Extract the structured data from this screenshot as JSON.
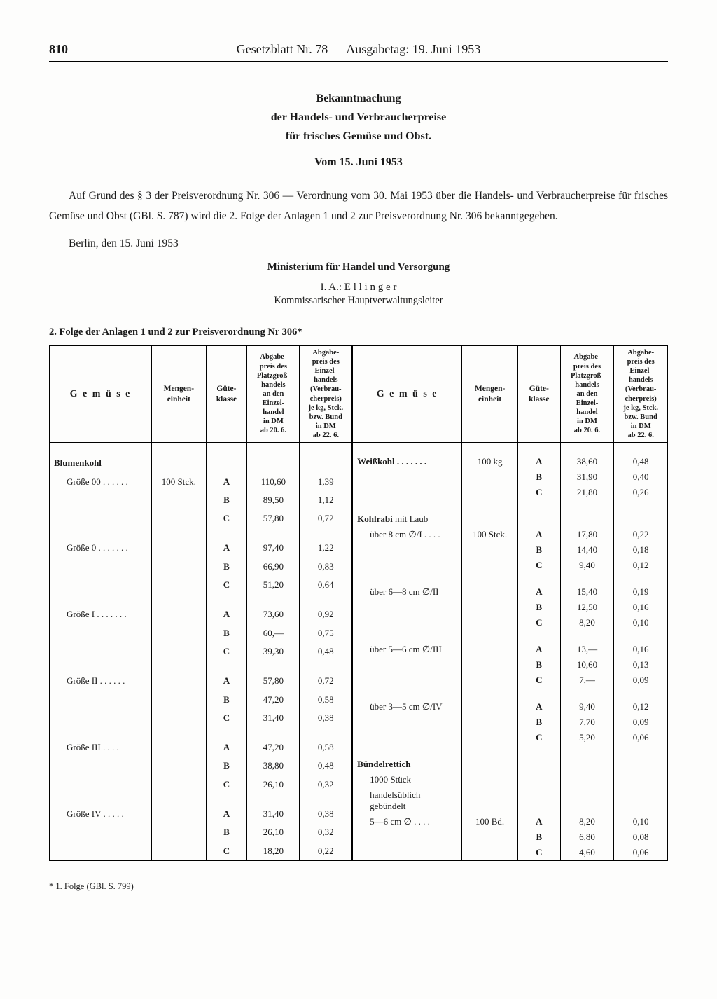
{
  "header": {
    "pagenum": "810",
    "running": "Gesetzblatt Nr. 78 — Ausgabetag: 19. Juni 1953"
  },
  "title": {
    "l1": "Bekanntmachung",
    "l2": "der Handels- und Verbraucherpreise",
    "l3": "für frisches Gemüse und Obst.",
    "date": "Vom 15. Juni 1953"
  },
  "para": {
    "p1": "Auf Grund des § 3 der Preisverordnung Nr. 306 — Verordnung vom 30. Mai 1953 über die Handels- und Verbraucherpreise für frisches Gemüse und Obst (GBl. S. 787) wird die 2. Folge der Anlagen 1 und 2 zur Preisverordnung Nr. 306 bekanntgegeben.",
    "place": "Berlin, den 15. Juni 1953",
    "ministry": "Ministerium für Handel und Versorgung",
    "sig": "I. A.:  E l l i n g e r",
    "role": "Kommissarischer Hauptverwaltungsleiter"
  },
  "subhead": "2. Folge der Anlagen 1 und 2 zur Preisverordnung Nr 306*",
  "footnote": "* 1. Folge (GBl. S. 799)",
  "thead": {
    "c1": "G e m ü s e",
    "c2": "Mengen-\neinheit",
    "c3": "Güte-\nklasse",
    "c4": "Abgabe-\npreis des\nPlatzgroß-\nhandels\nan den\nEinzel-\nhandel\nin DM\nab 20. 6.",
    "c5": "Abgabe-\npreis des\nEinzel-\nhandels\n(Verbrau-\ncherpreis)\nje kg, Stck.\nbzw. Bund\nin DM\nab 22. 6."
  },
  "left": {
    "blumenkohl": "Blumenkohl",
    "g00": "Größe 00  . . . . . .",
    "g0": "Größe  0  . . . . . . .",
    "gI": "Größe I   . . . . . . .",
    "gII": "Größe II  . . . . . .",
    "gIII": "Größe III  . . . .",
    "gIV": "Größe IV  . . . . .",
    "unit": "100 Stck.",
    "rows": {
      "g00A": {
        "k": "A",
        "p1": "110,60",
        "p2": "1,39"
      },
      "g00B": {
        "k": "B",
        "p1": "89,50",
        "p2": "1,12"
      },
      "g00C": {
        "k": "C",
        "p1": "57,80",
        "p2": "0,72"
      },
      "g0A": {
        "k": "A",
        "p1": "97,40",
        "p2": "1,22"
      },
      "g0B": {
        "k": "B",
        "p1": "66,90",
        "p2": "0,83"
      },
      "g0C": {
        "k": "C",
        "p1": "51,20",
        "p2": "0,64"
      },
      "gIA": {
        "k": "A",
        "p1": "73,60",
        "p2": "0,92"
      },
      "gIB": {
        "k": "B",
        "p1": "60,—",
        "p2": "0,75"
      },
      "gIC": {
        "k": "C",
        "p1": "39,30",
        "p2": "0,48"
      },
      "gIIA": {
        "k": "A",
        "p1": "57,80",
        "p2": "0,72"
      },
      "gIIB": {
        "k": "B",
        "p1": "47,20",
        "p2": "0,58"
      },
      "gIIC": {
        "k": "C",
        "p1": "31,40",
        "p2": "0,38"
      },
      "gIIIA": {
        "k": "A",
        "p1": "47,20",
        "p2": "0,58"
      },
      "gIIIB": {
        "k": "B",
        "p1": "38,80",
        "p2": "0,48"
      },
      "gIIIC": {
        "k": "C",
        "p1": "26,10",
        "p2": "0,32"
      },
      "gIVA": {
        "k": "A",
        "p1": "31,40",
        "p2": "0,38"
      },
      "gIVB": {
        "k": "B",
        "p1": "26,10",
        "p2": "0,32"
      },
      "gIVC": {
        "k": "C",
        "p1": "18,20",
        "p2": "0,22"
      }
    }
  },
  "right": {
    "weisskohl": "Weißkohl  . . . . . . .",
    "w_unit": "100 kg",
    "kohlrabi": "Kohlrabi",
    "kohlrabi_suffix": "mit Laub",
    "k1": "über 8 cm ∅/I . . . .",
    "k2": "über 6—8 cm ∅/II",
    "k3": "über 5—6 cm ∅/III",
    "k4": "über 3—5 cm ∅/IV",
    "k_unit": "100 Stck.",
    "rettich1": "Bündelrettich",
    "rettich2": "1000 Stück",
    "rettich3": "handelsüblich\ngebündelt",
    "r1": "5—6 cm ∅  . . . .",
    "r_unit": "100 Bd.",
    "rows": {
      "wA": {
        "k": "A",
        "p1": "38,60",
        "p2": "0,48"
      },
      "wB": {
        "k": "B",
        "p1": "31,90",
        "p2": "0,40"
      },
      "wC": {
        "k": "C",
        "p1": "21,80",
        "p2": "0,26"
      },
      "k1A": {
        "k": "A",
        "p1": "17,80",
        "p2": "0,22"
      },
      "k1B": {
        "k": "B",
        "p1": "14,40",
        "p2": "0,18"
      },
      "k1C": {
        "k": "C",
        "p1": "9,40",
        "p2": "0,12"
      },
      "k2A": {
        "k": "A",
        "p1": "15,40",
        "p2": "0,19"
      },
      "k2B": {
        "k": "B",
        "p1": "12,50",
        "p2": "0,16"
      },
      "k2C": {
        "k": "C",
        "p1": "8,20",
        "p2": "0,10"
      },
      "k3A": {
        "k": "A",
        "p1": "13,—",
        "p2": "0,16"
      },
      "k3B": {
        "k": "B",
        "p1": "10,60",
        "p2": "0,13"
      },
      "k3C": {
        "k": "C",
        "p1": "7,—",
        "p2": "0,09"
      },
      "k4A": {
        "k": "A",
        "p1": "9,40",
        "p2": "0,12"
      },
      "k4B": {
        "k": "B",
        "p1": "7,70",
        "p2": "0,09"
      },
      "k4C": {
        "k": "C",
        "p1": "5,20",
        "p2": "0,06"
      },
      "rA": {
        "k": "A",
        "p1": "8,20",
        "p2": "0,10"
      },
      "rB": {
        "k": "B",
        "p1": "6,80",
        "p2": "0,08"
      },
      "rC": {
        "k": "C",
        "p1": "4,60",
        "p2": "0,06"
      }
    }
  }
}
